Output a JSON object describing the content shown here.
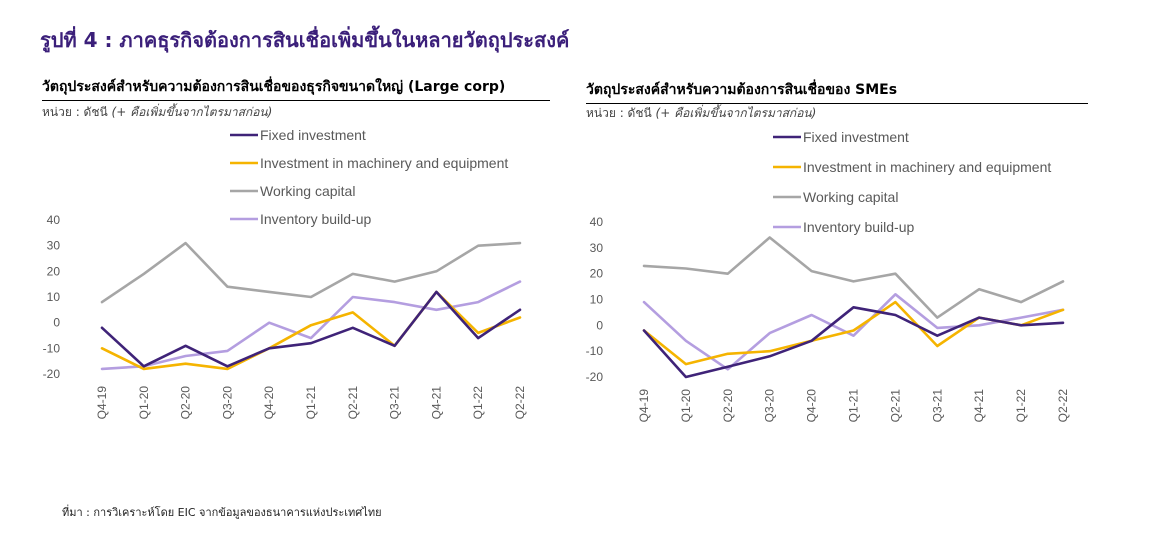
{
  "figure_title": "รูปที่ 4 : ภาคธุรกิจต้องการสินเชื่อเพิ่มขึ้นในหลายวัตถุประสงค์",
  "source_note": "ที่มา : การวิเคราะห์โดย EIC จากข้อมูลของธนาคารแห่งประเทศไทย",
  "colors": {
    "title": "#3b1f7a",
    "fixed_investment": "#3f2378",
    "machinery": "#f5b400",
    "working_capital": "#a6a6a6",
    "inventory": "#b49ee0"
  },
  "panels": [
    {
      "title": "วัตถุประสงค์สำหรับความต้องการสินเชื่อของธุรกิจขนาดใหญ่ (Large corp)",
      "unit_label": "หน่วย : ดัชนี",
      "unit_note": "(+ คือเพิ่มขึ้นจากไตรมาสก่อน)"
    },
    {
      "title": "วัตถุประสงค์สำหรับความต้องการสินเชื่อของ SMEs",
      "unit_label": "หน่วย : ดัชนี",
      "unit_note": "(+ คือเพิ่มขึ้นจากไตรมาสก่อน)"
    }
  ],
  "chart_data": [
    {
      "type": "line",
      "title": "วัตถุประสงค์สำหรับความต้องการสินเชื่อของธุรกิจขนาดใหญ่ (Large corp)",
      "categories": [
        "Q4-19",
        "Q1-20",
        "Q2-20",
        "Q3-20",
        "Q4-20",
        "Q1-21",
        "Q2-21",
        "Q3-21",
        "Q4-21",
        "Q1-22",
        "Q2-22"
      ],
      "ylim": [
        -20,
        40
      ],
      "yticks": [
        40,
        30,
        20,
        10,
        0,
        -10,
        -20
      ],
      "grid": false,
      "legend_position": "top-right",
      "series": [
        {
          "name": "Fixed investment",
          "values": [
            -2,
            -17,
            -9,
            -17,
            -10,
            -8,
            -2,
            -9,
            12,
            -6,
            5
          ]
        },
        {
          "name": "Investment in machinery and equipment",
          "values": [
            -10,
            -18,
            -16,
            -18,
            -10,
            -1,
            4,
            -9,
            12,
            -4,
            2
          ]
        },
        {
          "name": "Working capital",
          "values": [
            8,
            19,
            31,
            14,
            12,
            10,
            19,
            16,
            20,
            30,
            31
          ]
        },
        {
          "name": "Inventory build-up",
          "values": [
            -18,
            -17,
            -13,
            -11,
            0,
            -6,
            10,
            8,
            5,
            8,
            16
          ]
        }
      ]
    },
    {
      "type": "line",
      "title": "วัตถุประสงค์สำหรับความต้องการสินเชื่อของ SMEs",
      "categories": [
        "Q4-19",
        "Q1-20",
        "Q2-20",
        "Q3-20",
        "Q4-20",
        "Q1-21",
        "Q2-21",
        "Q3-21",
        "Q4-21",
        "Q1-22",
        "Q2-22"
      ],
      "ylim": [
        -20,
        40
      ],
      "yticks": [
        40,
        30,
        20,
        10,
        0,
        -10,
        -20
      ],
      "grid": false,
      "legend_position": "top-right",
      "series": [
        {
          "name": "Fixed investment",
          "values": [
            -2,
            -20,
            -16,
            -12,
            -6,
            7,
            4,
            -4,
            3,
            0,
            1
          ]
        },
        {
          "name": "Investment in machinery and equipment",
          "values": [
            -2,
            -15,
            -11,
            -10,
            -6,
            -2,
            9,
            -8,
            3,
            0,
            6
          ]
        },
        {
          "name": "Working capital",
          "values": [
            23,
            22,
            20,
            34,
            21,
            17,
            20,
            3,
            14,
            9,
            17
          ]
        },
        {
          "name": "Inventory build-up",
          "values": [
            9,
            -6,
            -17,
            -3,
            4,
            -4,
            12,
            -1,
            0,
            3,
            6
          ]
        }
      ]
    }
  ]
}
